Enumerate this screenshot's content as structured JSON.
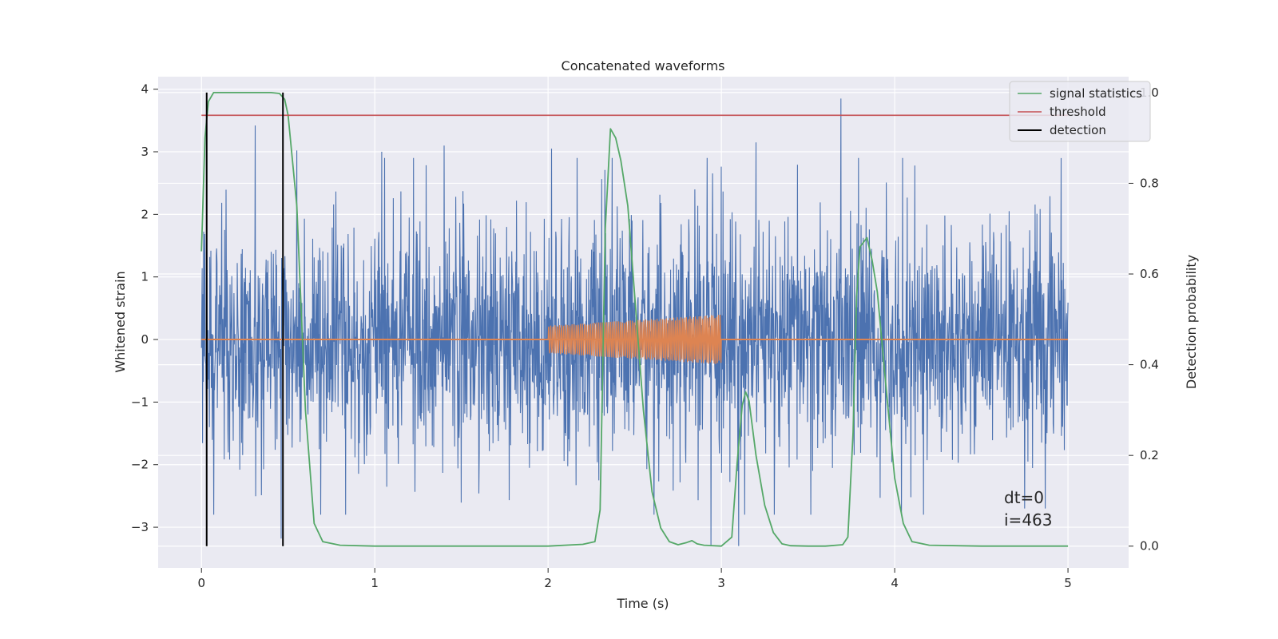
{
  "chart_data": {
    "type": "line",
    "title": "Concatenated waveforms",
    "xlabel": "Time (s)",
    "ylabel": "Whitened strain",
    "y2label": "Detection probability",
    "xlim": [
      -0.25,
      5.35
    ],
    "ylim": [
      -3.65,
      4.2
    ],
    "y2lim": [
      -0.048,
      1.035
    ],
    "xticks": [
      0,
      1,
      2,
      3,
      4,
      5
    ],
    "yticks": [
      -3,
      -2,
      -1,
      0,
      1,
      2,
      3,
      4
    ],
    "y2ticks": [
      0.0,
      0.2,
      0.4,
      0.6,
      0.8,
      1.0
    ],
    "xtick_labels": [
      "0",
      "1",
      "2",
      "3",
      "4",
      "5"
    ],
    "ytick_labels": [
      "−3",
      "−2",
      "−1",
      "0",
      "1",
      "2",
      "3",
      "4"
    ],
    "y2tick_labels": [
      "0.0",
      "0.2",
      "0.4",
      "0.6",
      "0.8",
      "1.0"
    ],
    "grid": true,
    "legend_position": "top-right",
    "colors": {
      "background": "#eaeaf2",
      "grid": "#ffffff",
      "strain": "#4c72b0",
      "injection": "#dd8452",
      "signal_statistics": "#55a868",
      "threshold": "#c44e52",
      "detection": "#000000"
    },
    "legend": [
      {
        "label": "signal statistics",
        "color": "#55a868"
      },
      {
        "label": "threshold",
        "color": "#c44e52"
      },
      {
        "label": "detection",
        "color": "#000000"
      }
    ],
    "series": [
      {
        "name": "signal statistics",
        "axis": "right",
        "x": [
          0.0,
          0.02,
          0.04,
          0.07,
          0.1,
          0.2,
          0.3,
          0.4,
          0.45,
          0.48,
          0.5,
          0.55,
          0.6,
          0.65,
          0.7,
          0.8,
          1.0,
          1.5,
          2.0,
          2.2,
          2.27,
          2.3,
          2.33,
          2.36,
          2.39,
          2.42,
          2.46,
          2.5,
          2.55,
          2.6,
          2.65,
          2.7,
          2.75,
          2.8,
          2.83,
          2.86,
          2.9,
          3.0,
          3.06,
          3.09,
          3.12,
          3.14,
          3.16,
          3.2,
          3.25,
          3.3,
          3.35,
          3.4,
          3.5,
          3.6,
          3.7,
          3.73,
          3.76,
          3.78,
          3.8,
          3.84,
          3.87,
          3.9,
          3.95,
          4.0,
          4.05,
          4.1,
          4.2,
          4.5,
          5.0
        ],
        "values": [
          0.65,
          0.9,
          0.98,
          1.0,
          1.0,
          1.0,
          1.0,
          1.0,
          0.998,
          0.985,
          0.95,
          0.75,
          0.3,
          0.05,
          0.01,
          0.002,
          0.0,
          0.0,
          0.0,
          0.004,
          0.01,
          0.08,
          0.7,
          0.92,
          0.9,
          0.85,
          0.75,
          0.55,
          0.3,
          0.12,
          0.04,
          0.01,
          0.003,
          0.008,
          0.012,
          0.005,
          0.002,
          0.0,
          0.02,
          0.18,
          0.31,
          0.34,
          0.32,
          0.2,
          0.09,
          0.03,
          0.005,
          0.001,
          0.0,
          0.0,
          0.003,
          0.02,
          0.25,
          0.55,
          0.66,
          0.68,
          0.63,
          0.56,
          0.35,
          0.15,
          0.05,
          0.01,
          0.002,
          0.0,
          0.0
        ]
      },
      {
        "name": "threshold",
        "axis": "right",
        "x": [
          0.0,
          5.0
        ],
        "values": [
          0.95,
          0.95
        ]
      },
      {
        "name": "detection",
        "axis": "right",
        "type": "vertical-lines",
        "x": [
          0.03,
          0.47
        ],
        "range": [
          0.0,
          1.0
        ]
      },
      {
        "axis": "left",
        "description_only": false,
        "x_start": 0.0,
        "x_end": 5.0,
        "kind": "noise",
        "amplitude_std": 0.85,
        "peaks": [
          {
            "x": 0.31,
            "value": 3.42
          },
          {
            "x": 0.55,
            "value": 3.02
          },
          {
            "x": 1.04,
            "value": 3.0
          },
          {
            "x": 1.4,
            "value": 3.1
          },
          {
            "x": 2.02,
            "value": 3.05
          },
          {
            "x": 3.2,
            "value": 3.15
          },
          {
            "x": 3.69,
            "value": 3.85
          },
          {
            "x": 0.46,
            "value": -3.18
          },
          {
            "x": 2.94,
            "value": -3.3
          },
          {
            "x": 3.1,
            "value": -3.3
          },
          {
            "x": 4.75,
            "value": -2.7
          }
        ]
      },
      {
        "axis": "left",
        "kind": "chirp",
        "x_start": 2.0,
        "x_end": 3.0,
        "amplitude_start": 0.22,
        "amplitude_end": 0.4,
        "baseline": 0.0
      }
    ],
    "annotations": [
      "dt=0",
      "i=463"
    ]
  }
}
